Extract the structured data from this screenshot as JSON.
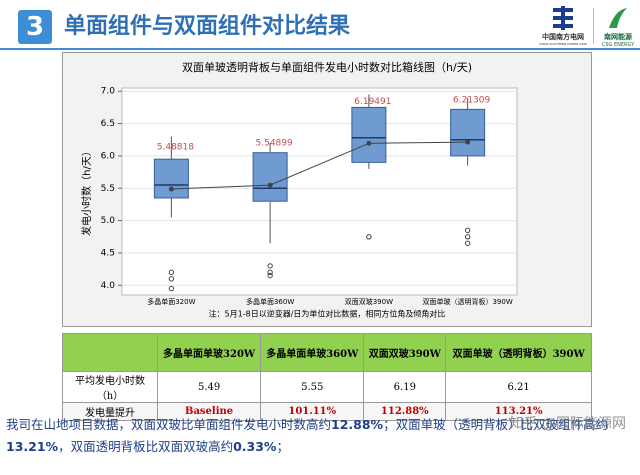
{
  "header": {
    "badge": "3",
    "title": "单面组件与双面组件对比结果",
    "logo_left": "中国南方电网",
    "logo_left_sub": "CHINA SOUTHERN POWER GRID",
    "logo_right": "南网能源",
    "logo_right_sub": "CSG ENERGY"
  },
  "chart_data": {
    "type": "box",
    "title": "双面单玻透明背板与单面组件发电小时数对比箱线图（h/天)",
    "ylabel": "发电小时数（h/天）",
    "categories": [
      "多晶单面320W",
      "多晶单面360W",
      "双面双玻390W",
      "双面单玻（透明背板）390W"
    ],
    "boxes": [
      {
        "low": 5.05,
        "q1": 5.35,
        "median": 5.55,
        "q3": 5.95,
        "high": 6.3,
        "mean": 5.48818,
        "outliers": [
          4.2,
          4.1,
          3.95
        ]
      },
      {
        "low": 4.65,
        "q1": 5.3,
        "median": 5.5,
        "q3": 6.05,
        "high": 6.2,
        "mean": 5.54899,
        "outliers": [
          4.3,
          4.2,
          4.15
        ]
      },
      {
        "low": 5.8,
        "q1": 5.9,
        "median": 6.28,
        "q3": 6.75,
        "high": 6.95,
        "mean": 6.19491,
        "outliers": [
          4.75
        ]
      },
      {
        "low": 5.85,
        "q1": 6.0,
        "median": 6.25,
        "q3": 6.72,
        "high": 6.9,
        "mean": 6.21309,
        "outliers": [
          4.85,
          4.75,
          4.65
        ]
      }
    ],
    "color": "#6f9bd1",
    "mean_color": "#c0504d",
    "ylim": [
      3.85,
      7.05
    ],
    "yticks": [
      {
        "value": 4,
        "label": "4.0"
      },
      {
        "value": 4.5,
        "label": "4.5"
      },
      {
        "value": 5,
        "label": "5.0"
      },
      {
        "value": 5.5,
        "label": "5.5"
      },
      {
        "value": 6,
        "label": "6.0"
      },
      {
        "value": 6.5,
        "label": "6.5"
      },
      {
        "value": 7,
        "label": "7.0"
      }
    ],
    "grid": true,
    "note": "注：5月1-8日以逆变器/日为单位对比数据，相同方位角及倾角对比"
  },
  "table": {
    "header": [
      "",
      "多晶单面单玻320W",
      "多晶单面单玻360W",
      "双面双玻390W",
      "双面单玻（透明背板）390W"
    ],
    "rows": [
      [
        "平均发电小时数（h）",
        "5.49",
        "5.55",
        "6.19",
        "6.21"
      ],
      [
        "发电量提升",
        "Baseline",
        "101.11%",
        "112.88%",
        "113.21%"
      ]
    ]
  },
  "summary": {
    "parts": [
      "我司在山地项目数据，双面双玻比单面组件发电小时数高约",
      "12.88%",
      "；双面单玻（透明背板）比双玻组件高约",
      "13.21%",
      "，双面透明背板比双面双玻高约",
      "0.33%",
      "；"
    ]
  },
  "watermark": "知乎 @国际能源网"
}
